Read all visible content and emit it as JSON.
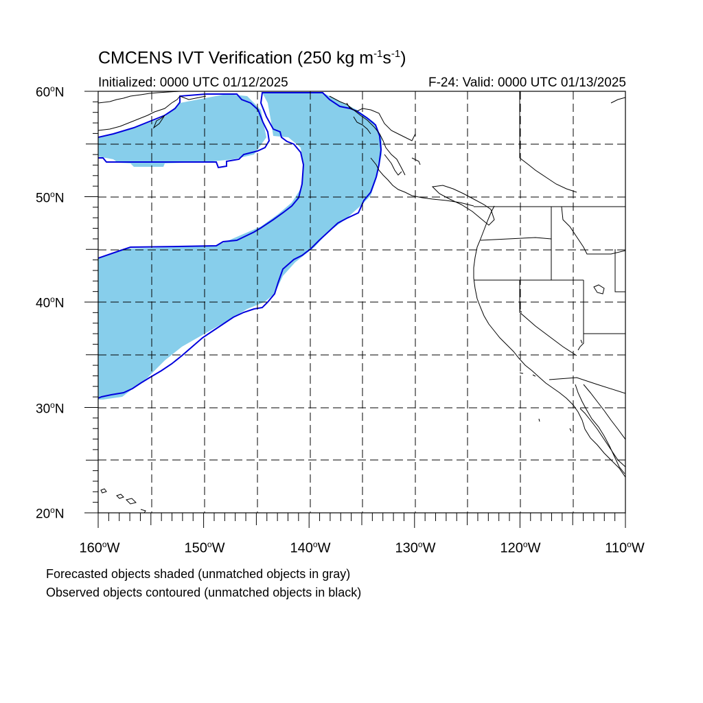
{
  "title": {
    "text": "CMCENS IVT Verification (250 kg m",
    "sup1": "-1",
    "mid": "s",
    "sup2": "-1",
    "end": ")"
  },
  "subtitle_left": "Initialized: 0000 UTC 01/12/2025",
  "subtitle_right": "F-24: Valid: 0000 UTC 01/13/2025",
  "lat_labels": [
    {
      "value": "60",
      "deg": "o",
      "hemi": "N"
    },
    {
      "value": "50",
      "deg": "o",
      "hemi": "N"
    },
    {
      "value": "40",
      "deg": "o",
      "hemi": "N"
    },
    {
      "value": "30",
      "deg": "o",
      "hemi": "N"
    },
    {
      "value": "20",
      "deg": "o",
      "hemi": "N"
    }
  ],
  "lon_labels": [
    {
      "value": "160",
      "deg": "o",
      "hemi": "W"
    },
    {
      "value": "150",
      "deg": "o",
      "hemi": "W"
    },
    {
      "value": "140",
      "deg": "o",
      "hemi": "W"
    },
    {
      "value": "130",
      "deg": "o",
      "hemi": "W"
    },
    {
      "value": "120",
      "deg": "o",
      "hemi": "W"
    },
    {
      "value": "110",
      "deg": "o",
      "hemi": "W"
    }
  ],
  "notes": [
    "Forecasted objects shaded (unmatched objects in gray)",
    "Observed objects contoured (unmatched objects in black)"
  ],
  "extent": {
    "lon_min": -160,
    "lon_max": -110,
    "lat_min": 20,
    "lat_max": 60
  },
  "colors": {
    "forecast_fill": "#87ceeb",
    "observed_contour": "#0000dd",
    "coast": "#000000",
    "grid": "#000000"
  }
}
